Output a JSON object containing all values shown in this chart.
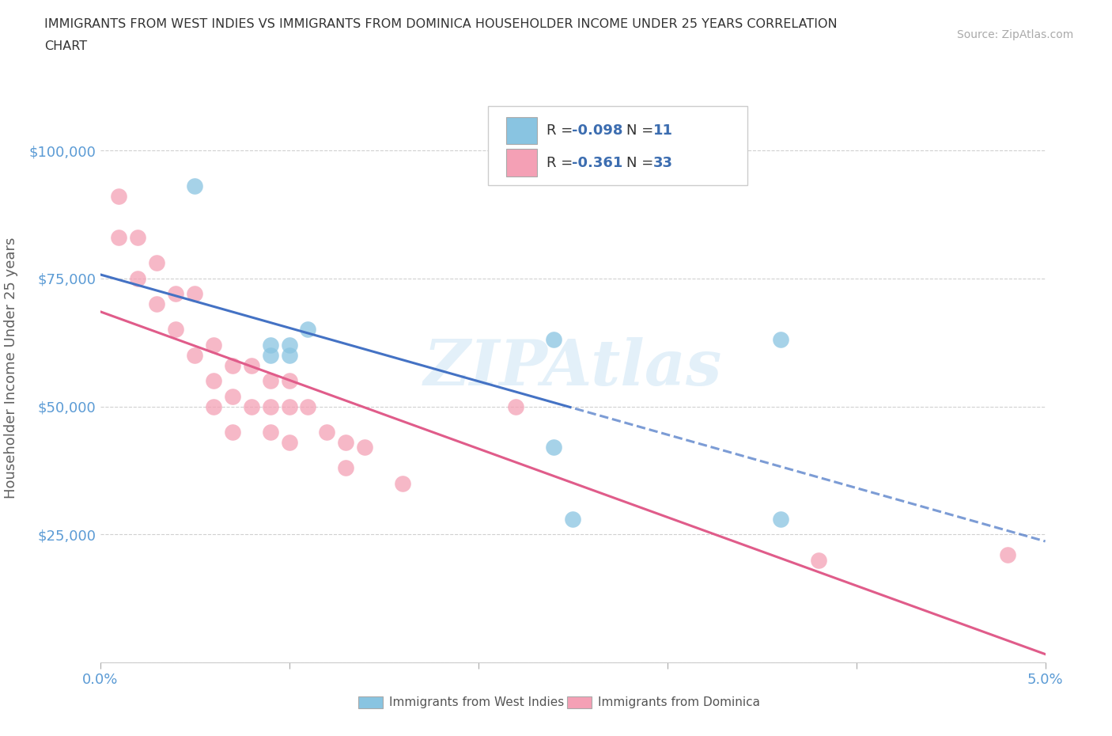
{
  "title_line1": "IMMIGRANTS FROM WEST INDIES VS IMMIGRANTS FROM DOMINICA HOUSEHOLDER INCOME UNDER 25 YEARS CORRELATION",
  "title_line2": "CHART",
  "source_text": "Source: ZipAtlas.com",
  "ylabel": "Householder Income Under 25 years",
  "xlim": [
    0.0,
    0.05
  ],
  "ylim": [
    0,
    115000
  ],
  "yticks": [
    0,
    25000,
    50000,
    75000,
    100000
  ],
  "ytick_labels": [
    "",
    "$25,000",
    "$50,000",
    "$75,000",
    "$100,000"
  ],
  "xticks": [
    0.0,
    0.01,
    0.02,
    0.03,
    0.04,
    0.05
  ],
  "xtick_labels": [
    "0.0%",
    "",
    "",
    "",
    "",
    "5.0%"
  ],
  "bg_color": "#ffffff",
  "watermark": "ZIPAtlas",
  "blue_color": "#89c4e1",
  "pink_color": "#f4a0b5",
  "blue_line_color": "#4472c4",
  "pink_line_color": "#e05c8a",
  "west_indies_x": [
    0.005,
    0.009,
    0.009,
    0.01,
    0.01,
    0.011,
    0.024,
    0.024,
    0.025,
    0.036,
    0.036
  ],
  "west_indies_y": [
    93000,
    62000,
    60000,
    62000,
    60000,
    65000,
    63000,
    42000,
    28000,
    63000,
    28000
  ],
  "dominica_x": [
    0.001,
    0.001,
    0.002,
    0.002,
    0.003,
    0.003,
    0.004,
    0.004,
    0.005,
    0.005,
    0.006,
    0.006,
    0.006,
    0.007,
    0.007,
    0.007,
    0.008,
    0.008,
    0.009,
    0.009,
    0.009,
    0.01,
    0.01,
    0.01,
    0.011,
    0.012,
    0.013,
    0.013,
    0.014,
    0.016,
    0.022,
    0.038,
    0.048
  ],
  "dominica_y": [
    91000,
    83000,
    83000,
    75000,
    78000,
    70000,
    72000,
    65000,
    72000,
    60000,
    62000,
    55000,
    50000,
    58000,
    52000,
    45000,
    58000,
    50000,
    55000,
    50000,
    45000,
    55000,
    50000,
    43000,
    50000,
    45000,
    43000,
    38000,
    42000,
    35000,
    50000,
    20000,
    21000
  ],
  "grid_color": "#d0d0d0",
  "tick_color": "#5b9bd5",
  "axis_label_color": "#606060",
  "legend_r1": "-0.098",
  "legend_n1": "11",
  "legend_r2": "-0.361",
  "legend_n2": "33"
}
